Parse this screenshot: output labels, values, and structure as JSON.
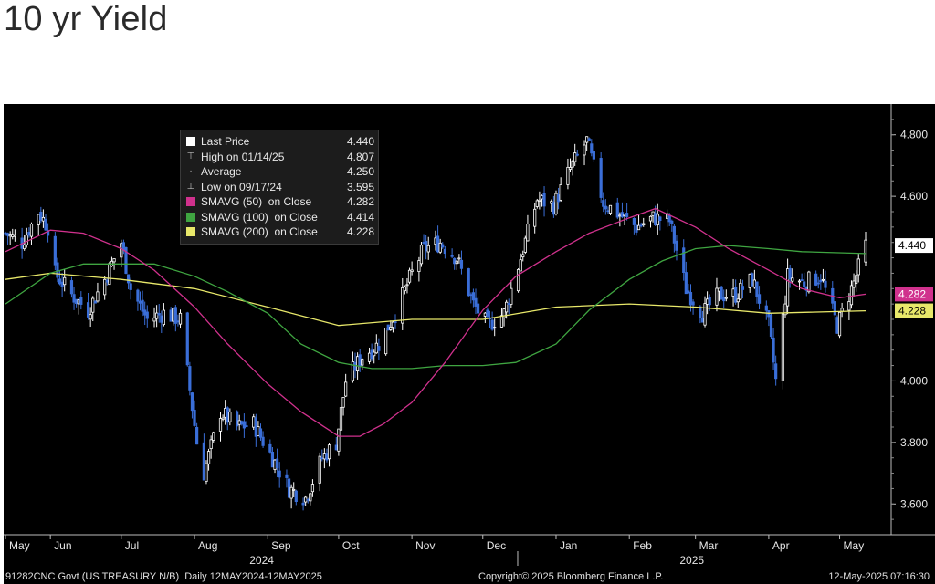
{
  "page": {
    "title": "10 yr Yield"
  },
  "legend": [
    {
      "symbol": "square-icon",
      "color": "#ffffff",
      "label": "Last Price",
      "value": "4.440"
    },
    {
      "symbol": "high-marker-icon",
      "color": "#bbbbbb",
      "label": "High on 01/14/25",
      "value": "4.807"
    },
    {
      "symbol": "average-marker-icon",
      "color": "#bbbbbb",
      "label": "Average",
      "value": "4.250"
    },
    {
      "symbol": "low-marker-icon",
      "color": "#bbbbbb",
      "label": "Low on 09/17/24",
      "value": "3.595"
    },
    {
      "symbol": "square-icon",
      "color": "#d0318d",
      "label": "SMAVG (50)  on Close",
      "value": "4.282"
    },
    {
      "symbol": "square-icon",
      "color": "#3fa541",
      "label": "SMAVG (100)  on Close",
      "value": "4.414"
    },
    {
      "symbol": "square-icon",
      "color": "#e8e86a",
      "label": "SMAVG (200)  on Close",
      "value": "4.228"
    }
  ],
  "footer": {
    "left": "91282CNC Govt (US TREASURY N/B)  Daily 12MAY2024-12MAY2025",
    "center": "Copyright© 2025 Bloomberg Finance L.P.",
    "right": "12-May-2025 07:16:30"
  },
  "chart_data": {
    "type": "candlestick",
    "title": "10 yr Yield",
    "ylim": [
      3.5,
      4.9
    ],
    "y_ticks": [
      "4.800",
      "4.600",
      "4.000",
      "3.800",
      "3.600"
    ],
    "x_months": [
      "May",
      "Jun",
      "Jul",
      "Aug",
      "Sep",
      "Oct",
      "Nov",
      "Dec",
      "Jan",
      "Feb",
      "Mar",
      "Apr",
      "May"
    ],
    "x_years": [
      "2024",
      "2025"
    ],
    "x_range": [
      "2024-05-13",
      "2025-05-12"
    ],
    "colors": {
      "up": "#ffffff",
      "down": "#3a6ed8",
      "sma50": "#d0318d",
      "sma100": "#3fa541",
      "sma200": "#e8e86a"
    },
    "price_close": [
      [
        "2024-05-13",
        4.48
      ],
      [
        "2024-05-20",
        4.45
      ],
      [
        "2024-05-27",
        4.55
      ],
      [
        "2024-05-31",
        4.5
      ],
      [
        "2024-06-03",
        4.35
      ],
      [
        "2024-06-10",
        4.28
      ],
      [
        "2024-06-17",
        4.23
      ],
      [
        "2024-06-24",
        4.33
      ],
      [
        "2024-07-01",
        4.45
      ],
      [
        "2024-07-05",
        4.3
      ],
      [
        "2024-07-12",
        4.2
      ],
      [
        "2024-07-19",
        4.22
      ],
      [
        "2024-07-26",
        4.2
      ],
      [
        "2024-08-02",
        3.8
      ],
      [
        "2024-08-05",
        3.7
      ],
      [
        "2024-08-12",
        3.9
      ],
      [
        "2024-08-19",
        3.85
      ],
      [
        "2024-08-26",
        3.86
      ],
      [
        "2024-09-03",
        3.75
      ],
      [
        "2024-09-10",
        3.65
      ],
      [
        "2024-09-17",
        3.62
      ],
      [
        "2024-09-24",
        3.75
      ],
      [
        "2024-09-30",
        3.8
      ],
      [
        "2024-10-04",
        4.0
      ],
      [
        "2024-10-11",
        4.08
      ],
      [
        "2024-10-18",
        4.12
      ],
      [
        "2024-10-25",
        4.22
      ],
      [
        "2024-11-01",
        4.35
      ],
      [
        "2024-11-06",
        4.43
      ],
      [
        "2024-11-13",
        4.45
      ],
      [
        "2024-11-20",
        4.4
      ],
      [
        "2024-11-27",
        4.25
      ],
      [
        "2024-12-03",
        4.18
      ],
      [
        "2024-12-10",
        4.22
      ],
      [
        "2024-12-17",
        4.4
      ],
      [
        "2024-12-24",
        4.59
      ],
      [
        "2024-12-31",
        4.57
      ],
      [
        "2025-01-07",
        4.69
      ],
      [
        "2025-01-14",
        4.78
      ],
      [
        "2025-01-21",
        4.58
      ],
      [
        "2025-01-28",
        4.54
      ],
      [
        "2025-02-04",
        4.5
      ],
      [
        "2025-02-11",
        4.53
      ],
      [
        "2025-02-18",
        4.52
      ],
      [
        "2025-02-25",
        4.3
      ],
      [
        "2025-03-04",
        4.22
      ],
      [
        "2025-03-11",
        4.28
      ],
      [
        "2025-03-18",
        4.28
      ],
      [
        "2025-03-25",
        4.33
      ],
      [
        "2025-04-01",
        4.18
      ],
      [
        "2025-04-04",
        4.0
      ],
      [
        "2025-04-09",
        4.34
      ],
      [
        "2025-04-16",
        4.32
      ],
      [
        "2025-04-23",
        4.34
      ],
      [
        "2025-04-30",
        4.18
      ],
      [
        "2025-05-07",
        4.32
      ],
      [
        "2025-05-12",
        4.44
      ]
    ],
    "sma50": [
      [
        "2024-05-13",
        4.42
      ],
      [
        "2024-06-01",
        4.49
      ],
      [
        "2024-06-15",
        4.48
      ],
      [
        "2024-07-01",
        4.43
      ],
      [
        "2024-07-15",
        4.36
      ],
      [
        "2024-08-01",
        4.24
      ],
      [
        "2024-08-15",
        4.12
      ],
      [
        "2024-09-01",
        3.99
      ],
      [
        "2024-09-15",
        3.9
      ],
      [
        "2024-10-01",
        3.82
      ],
      [
        "2024-10-10",
        3.82
      ],
      [
        "2024-10-20",
        3.86
      ],
      [
        "2024-11-01",
        3.93
      ],
      [
        "2024-11-15",
        4.06
      ],
      [
        "2024-12-01",
        4.23
      ],
      [
        "2024-12-15",
        4.34
      ],
      [
        "2025-01-01",
        4.42
      ],
      [
        "2025-01-15",
        4.48
      ],
      [
        "2025-02-01",
        4.53
      ],
      [
        "2025-02-12",
        4.56
      ],
      [
        "2025-03-01",
        4.5
      ],
      [
        "2025-03-15",
        4.43
      ],
      [
        "2025-04-01",
        4.36
      ],
      [
        "2025-04-15",
        4.3
      ],
      [
        "2025-05-01",
        4.27
      ],
      [
        "2025-05-12",
        4.282
      ]
    ],
    "sma100": [
      [
        "2024-05-13",
        4.25
      ],
      [
        "2024-06-01",
        4.35
      ],
      [
        "2024-06-15",
        4.38
      ],
      [
        "2024-07-01",
        4.38
      ],
      [
        "2024-07-15",
        4.38
      ],
      [
        "2024-08-01",
        4.34
      ],
      [
        "2024-08-15",
        4.29
      ],
      [
        "2024-09-01",
        4.22
      ],
      [
        "2024-09-15",
        4.12
      ],
      [
        "2024-10-01",
        4.06
      ],
      [
        "2024-10-15",
        4.04
      ],
      [
        "2024-11-01",
        4.04
      ],
      [
        "2024-11-15",
        4.05
      ],
      [
        "2024-12-01",
        4.05
      ],
      [
        "2024-12-15",
        4.06
      ],
      [
        "2025-01-01",
        4.12
      ],
      [
        "2025-01-15",
        4.23
      ],
      [
        "2025-02-01",
        4.33
      ],
      [
        "2025-02-15",
        4.39
      ],
      [
        "2025-03-01",
        4.43
      ],
      [
        "2025-03-15",
        4.44
      ],
      [
        "2025-04-01",
        4.43
      ],
      [
        "2025-04-15",
        4.42
      ],
      [
        "2025-05-12",
        4.414
      ]
    ],
    "sma200": [
      [
        "2024-05-13",
        4.33
      ],
      [
        "2024-06-01",
        4.35
      ],
      [
        "2024-07-01",
        4.33
      ],
      [
        "2024-08-01",
        4.3
      ],
      [
        "2024-09-01",
        4.24
      ],
      [
        "2024-10-01",
        4.18
      ],
      [
        "2024-11-01",
        4.2
      ],
      [
        "2024-12-01",
        4.2
      ],
      [
        "2025-01-01",
        4.24
      ],
      [
        "2025-02-01",
        4.25
      ],
      [
        "2025-03-01",
        4.24
      ],
      [
        "2025-04-01",
        4.22
      ],
      [
        "2025-05-12",
        4.228
      ]
    ],
    "right_labels": [
      {
        "value": 4.44,
        "text": "4.440",
        "bg": "#ffffff",
        "fg": "#000000"
      },
      {
        "value": 4.282,
        "text": "4.282",
        "bg": "#d0318d",
        "fg": "#ffffff"
      },
      {
        "value": 4.228,
        "text": "4.228",
        "bg": "#e8e86a",
        "fg": "#000000"
      }
    ]
  }
}
